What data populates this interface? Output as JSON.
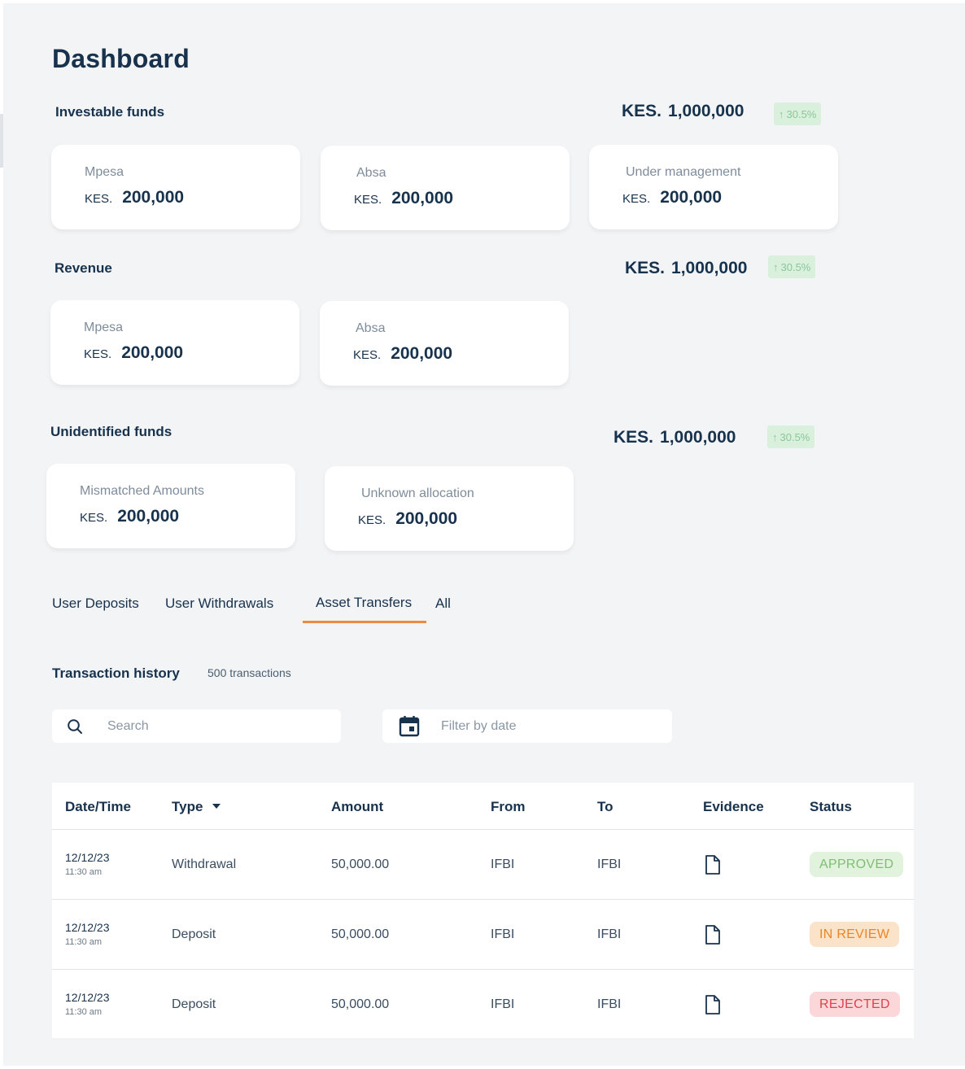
{
  "page": {
    "title": "Dashboard"
  },
  "sections": {
    "investable": {
      "label": "Investable funds",
      "total_currency": "KES.",
      "total_value": "1,000,000",
      "change": "30.5%",
      "cards": [
        {
          "label": "Mpesa",
          "currency": "KES.",
          "value": "200,000"
        },
        {
          "label": "Absa",
          "currency": "KES.",
          "value": "200,000"
        },
        {
          "label": "Under management",
          "currency": "KES.",
          "value": "200,000"
        }
      ]
    },
    "revenue": {
      "label": "Revenue",
      "total_currency": "KES.",
      "total_value": "1,000,000",
      "change": "30.5%",
      "cards": [
        {
          "label": "Mpesa",
          "currency": "KES.",
          "value": "200,000"
        },
        {
          "label": "Absa",
          "currency": "KES.",
          "value": "200,000"
        }
      ]
    },
    "unidentified": {
      "label": "Unidentified funds",
      "total_currency": "KES.",
      "total_value": "1,000,000",
      "change": "30.5%",
      "cards": [
        {
          "label": "Mismatched Amounts",
          "currency": "KES.",
          "value": "200,000"
        },
        {
          "label": "Unknown allocation",
          "currency": "KES.",
          "value": "200,000"
        }
      ]
    }
  },
  "colors": {
    "accent_tab": "#ef8a3c",
    "badge_bg": "#d9f0dc",
    "badge_text": "#8cc79a"
  },
  "tabs": [
    {
      "label": "User Deposits",
      "active": false
    },
    {
      "label": "User Withdrawals",
      "active": false
    },
    {
      "label": "Asset Transfers",
      "active": true
    },
    {
      "label": "All",
      "active": false
    }
  ],
  "transactions": {
    "title": "Transaction history",
    "count": "500 transactions",
    "search_placeholder": "Search",
    "date_placeholder": "Filter by date",
    "columns": [
      "Date/Time",
      "Type",
      "Amount",
      "From",
      "To",
      "Evidence",
      "Status"
    ],
    "rows": [
      {
        "date": "12/12/23",
        "time": "11:30 am",
        "type": "Withdrawal",
        "amount": "50,000.00",
        "from": "IFBI",
        "to": "IFBI",
        "evidence_icon": "document-icon",
        "status": "APPROVED",
        "status_bg": "#e1f2dd",
        "status_color": "#7fbf73"
      },
      {
        "date": "12/12/23",
        "time": "11:30 am",
        "type": "Deposit",
        "amount": "50,000.00",
        "from": "IFBI",
        "to": "IFBI",
        "evidence_icon": "document-icon",
        "status": "IN REVIEW",
        "status_bg": "#fbe3c9",
        "status_color": "#e6862a"
      },
      {
        "date": "12/12/23",
        "time": "11:30 am",
        "type": "Deposit",
        "amount": "50,000.00",
        "from": "IFBI",
        "to": "IFBI",
        "evidence_icon": "document-icon",
        "status": "REJECTED",
        "status_bg": "#fbd7d9",
        "status_color": "#d9444f"
      }
    ]
  }
}
